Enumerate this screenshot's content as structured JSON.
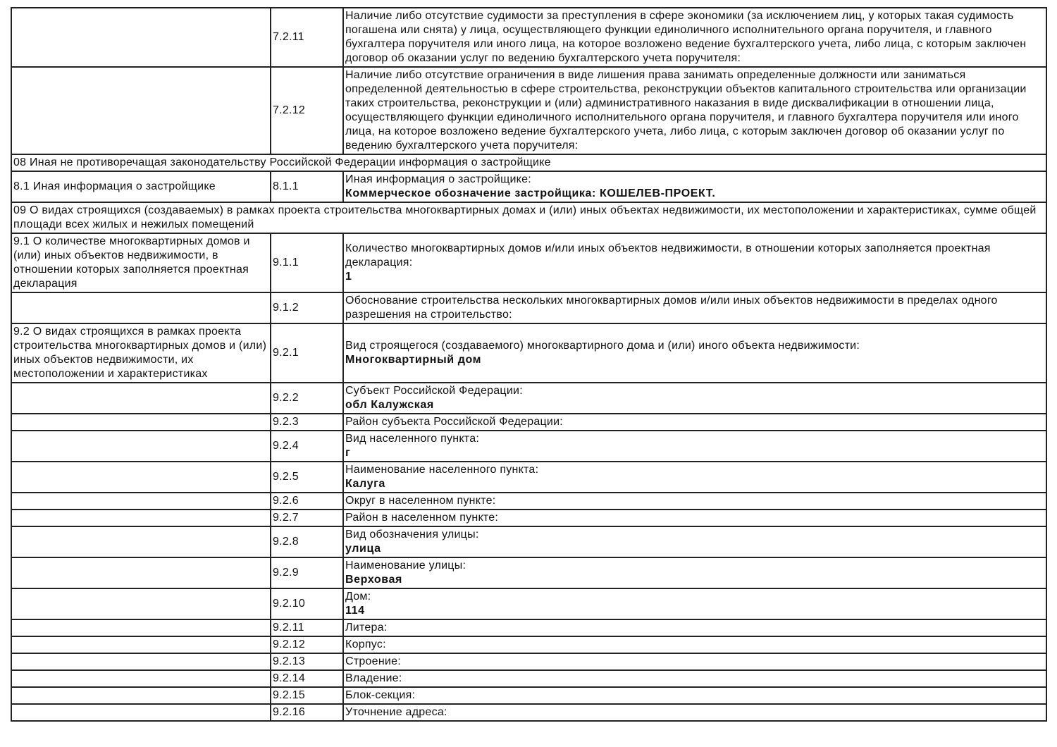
{
  "rows": [
    {
      "section": "",
      "code": "7.2.11",
      "label": "Наличие либо отсутствие судимости за преступления в сфере экономики (за исключением лиц, у которых такая судимость погашена или снята) у лица, осуществляющего функции единоличного исполнительного органа поручителя, и главного бухгалтера поручителя или иного лица, на которое возложено ведение бухгалтерского учета, либо лица, с которым заключен договор об оказании услуг по ведению бухгалтерского учета поручителя:",
      "value": ""
    },
    {
      "section": "",
      "code": "7.2.12",
      "label": "Наличие либо отсутствие ограничения в виде лишения права занимать определенные должности или заниматься определенной деятельностью в сфере строительства, реконструкции объектов капитального строительства или организации таких строительства, реконструкции и (или) административного наказания в виде дисквалификации в отношении лица, осуществляющего функции единоличного исполнительного органа поручителя, и главного бухгалтера поручителя или иного лица, на которое возложено ведение бухгалтерского учета, либо лица, с которым заключен договор об оказании услуг по ведению бухгалтерского учета поручителя:",
      "value": ""
    },
    {
      "header": "08 Иная не противоречащая законодательству Российской Федерации информация о застройщике"
    },
    {
      "section": "8.1 Иная информация о застройщике",
      "code": "8.1.1",
      "label": "Иная информация о застройщике:",
      "value": "Коммерческое обозначение застройщика: КОШЕЛЕВ-ПРОЕКТ."
    },
    {
      "header": "09 О видах строящихся (создаваемых) в рамках проекта строительства многоквартирных домах и (или) иных объектах недвижимости, их местоположении и характеристиках, сумме общей площади всех жилых и нежилых помещений"
    },
    {
      "section": "9.1 О количестве многоквартирных домов и (или) иных объектов недвижимости, в отношении которых заполняется проектная декларация",
      "code": "9.1.1",
      "label": "Количество многоквартирных домов и/или иных объектов недвижимости, в отношении которых заполняется проектная декларация:",
      "value": "1"
    },
    {
      "section": "",
      "code": "9.1.2",
      "label": "Обоснование строительства нескольких многоквартирных домов и/или иных объектов недвижимости в пределах одного разрешения на строительство:",
      "value": ""
    },
    {
      "section": "9.2 О видах строящихся в рамках проекта строительства многоквартирных домов и (или) иных объектов недвижимости, их местоположении и характеристиках",
      "code": "9.2.1",
      "label": "Вид строящегося (создаваемого) многоквартирного дома и (или) иного объекта недвижимости:",
      "value": "Многоквартирный дом"
    },
    {
      "section": "",
      "code": "9.2.2",
      "label": "Субъект Российской Федерации:",
      "value": "обл Калужская"
    },
    {
      "section": "",
      "code": "9.2.3",
      "label": "Район субъекта Российской Федерации:",
      "value": ""
    },
    {
      "section": "",
      "code": "9.2.4",
      "label": "Вид населенного пункта:",
      "value": "г"
    },
    {
      "section": "",
      "code": "9.2.5",
      "label": "Наименование населенного пункта:",
      "value": "Калуга"
    },
    {
      "section": "",
      "code": "9.2.6",
      "label": "Округ в населенном пункте:",
      "value": ""
    },
    {
      "section": "",
      "code": "9.2.7",
      "label": "Район в населенном пункте:",
      "value": ""
    },
    {
      "section": "",
      "code": "9.2.8",
      "label": "Вид обозначения улицы:",
      "value": "улица"
    },
    {
      "section": "",
      "code": "9.2.9",
      "label": "Наименование улицы:",
      "value": "Верховая"
    },
    {
      "section": "",
      "code": "9.2.10",
      "label": "Дом:",
      "value": "114"
    },
    {
      "section": "",
      "code": "9.2.11",
      "label": "Литера:",
      "value": ""
    },
    {
      "section": "",
      "code": "9.2.12",
      "label": "Корпус:",
      "value": ""
    },
    {
      "section": "",
      "code": "9.2.13",
      "label": "Строение:",
      "value": ""
    },
    {
      "section": "",
      "code": "9.2.14",
      "label": "Владение:",
      "value": ""
    },
    {
      "section": "",
      "code": "9.2.15",
      "label": "Блок-секция:",
      "value": ""
    },
    {
      "section": "",
      "code": "9.2.16",
      "label": "Уточнение адреса:",
      "value": ""
    }
  ]
}
